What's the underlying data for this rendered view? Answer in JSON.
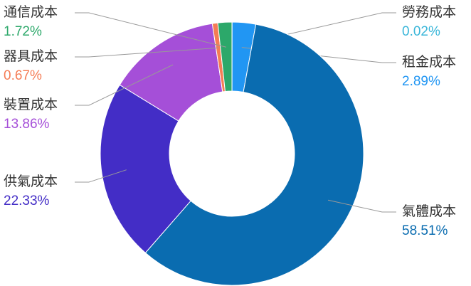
{
  "chart_data": {
    "type": "donut",
    "categories": [
      "勞務成本",
      "租金成本",
      "氣體成本",
      "供氣成本",
      "裝置成本",
      "器具成本",
      "通信成本"
    ],
    "values": [
      0.02,
      2.89,
      58.51,
      22.33,
      13.86,
      0.67,
      1.72
    ],
    "value_labels": [
      "0.02%",
      "2.89%",
      "58.51%",
      "22.33%",
      "13.86%",
      "0.67%",
      "1.72%"
    ],
    "colors": [
      "#39b6d9",
      "#2196f3",
      "#0a6cb0",
      "#432dc6",
      "#a54fd8",
      "#f57c55",
      "#2ca86a"
    ]
  }
}
